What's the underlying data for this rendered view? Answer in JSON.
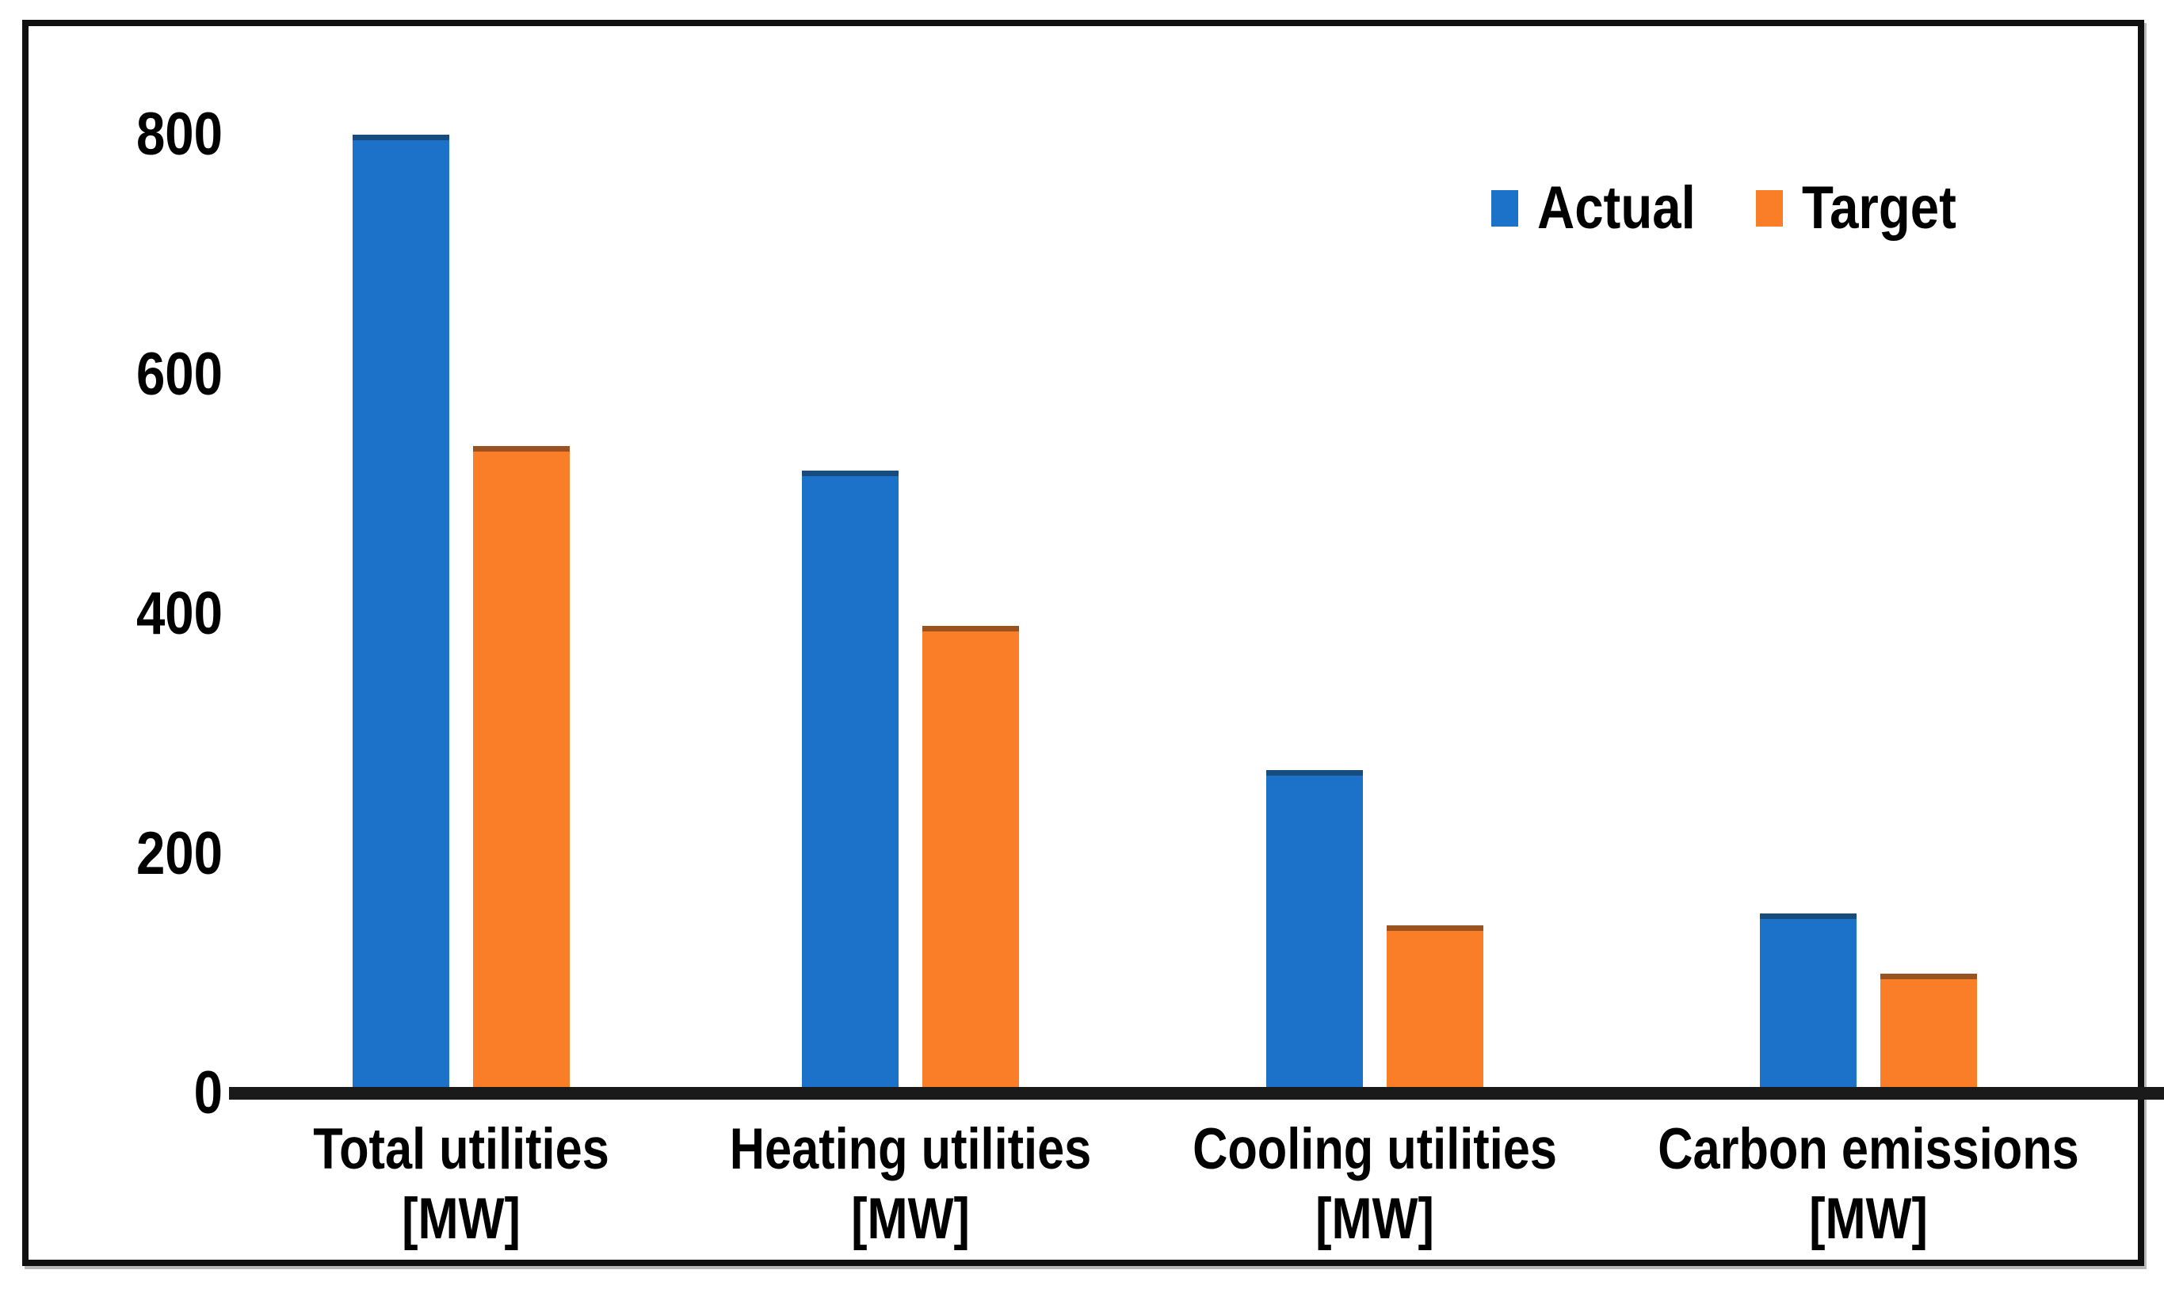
{
  "chart_data": {
    "type": "bar",
    "title": "",
    "xlabel": "",
    "ylabel": "",
    "categories": [
      {
        "label": "Total utilities",
        "unit": "[MW]"
      },
      {
        "label": "Heating utilities",
        "unit": "[MW]"
      },
      {
        "label": "Cooling utilities",
        "unit": "[MW]"
      },
      {
        "label": "Carbon emissions",
        "unit": "[MW]"
      }
    ],
    "series": [
      {
        "name": "Actual",
        "color": "#1B72C8",
        "values": [
          800,
          520,
          270,
          150
        ]
      },
      {
        "name": "Target",
        "color": "#F97E27",
        "values": [
          540,
          390,
          140,
          100
        ]
      }
    ],
    "yticks": [
      0,
      200,
      400,
      600,
      800
    ],
    "ylim": [
      0,
      800
    ],
    "grid": false,
    "legend_position": "top-right",
    "colors": {
      "axis": "#1a1a1a",
      "frame_border": "#101010",
      "text": "#000000",
      "background": "#ffffff"
    }
  }
}
